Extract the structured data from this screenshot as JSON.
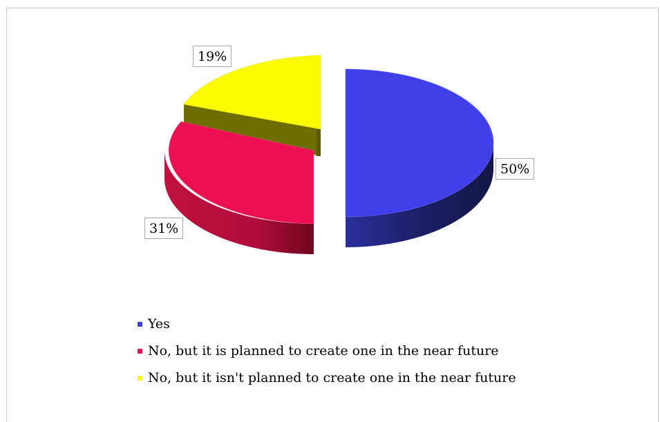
{
  "chart_data": {
    "type": "pie",
    "three_d": true,
    "exploded": true,
    "title": "",
    "slices": [
      {
        "label": "Yes",
        "value": 50,
        "data_label": "50%",
        "color": "#4040EA",
        "side_color": "#1C1F66"
      },
      {
        "label": "No, but it is planned to create one in the near future",
        "value": 31,
        "data_label": "31%",
        "color": "#EC0F51",
        "side_color": "#9C0C36"
      },
      {
        "label": "No, but it isn't planned to create one in the near future",
        "value": 19,
        "data_label": "19%",
        "color": "#FAFA00",
        "side_color": "#6E6D00"
      }
    ],
    "legend_position": "bottom-left"
  }
}
